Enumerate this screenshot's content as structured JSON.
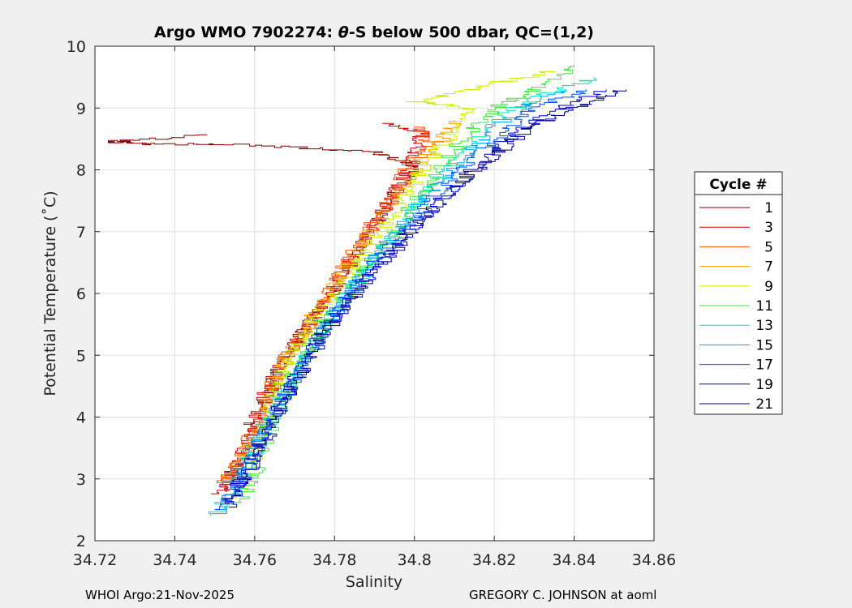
{
  "chart_data": {
    "type": "line",
    "title": "Argo WMO 7902274: θ-S below 500 dbar,  QC=(1,2)",
    "title_prefix": "Argo WMO 7902274: ",
    "title_theta": "θ",
    "title_suffix": "-S below 500 dbar,  QC=(1,2)",
    "xlabel": "Salinity",
    "ylabel": "Potential Temperature (˚C)",
    "xlim": [
      34.72,
      34.86
    ],
    "ylim": [
      2,
      10
    ],
    "xticks": [
      "34.72",
      "34.74",
      "34.76",
      "34.78",
      "34.8",
      "34.82",
      "34.84",
      "34.86"
    ],
    "yticks": [
      "2",
      "3",
      "4",
      "5",
      "6",
      "7",
      "8",
      "9",
      "10"
    ],
    "grid": true,
    "legend": {
      "title": "Cycle #",
      "placement": "outside-right",
      "entries": [
        {
          "label": "1",
          "color": "#800000"
        },
        {
          "label": "3",
          "color": "#d40000"
        },
        {
          "label": "5",
          "color": "#ff4f00"
        },
        {
          "label": "7",
          "color": "#ff9f00"
        },
        {
          "label": "9",
          "color": "#c8f000"
        },
        {
          "label": "11",
          "color": "#3ae93a"
        },
        {
          "label": "13",
          "color": "#00e5b0"
        },
        {
          "label": "15",
          "color": "#00a8ff"
        },
        {
          "label": "17",
          "color": "#0050ff"
        },
        {
          "label": "19",
          "color": "#0000d8"
        },
        {
          "label": "21",
          "color": "#00008f"
        }
      ]
    },
    "series": [
      {
        "name": "1",
        "points": [
          [
            34.752,
            2.8
          ],
          [
            34.756,
            3.3
          ],
          [
            34.76,
            3.9
          ],
          [
            34.764,
            4.5
          ],
          [
            34.768,
            5.0
          ],
          [
            34.772,
            5.4
          ],
          [
            34.777,
            5.8
          ],
          [
            34.782,
            6.3
          ],
          [
            34.787,
            6.8
          ],
          [
            34.792,
            7.3
          ],
          [
            34.797,
            7.8
          ],
          [
            34.8,
            8.1
          ],
          [
            34.79,
            8.3
          ],
          [
            34.76,
            8.4
          ],
          [
            34.735,
            8.42
          ],
          [
            34.722,
            8.46
          ],
          [
            34.748,
            8.56
          ]
        ]
      },
      {
        "name": "3",
        "points": [
          [
            34.751,
            2.75
          ],
          [
            34.755,
            3.2
          ],
          [
            34.759,
            3.8
          ],
          [
            34.762,
            4.4
          ],
          [
            34.767,
            4.9
          ],
          [
            34.771,
            5.3
          ],
          [
            34.776,
            5.7
          ],
          [
            34.781,
            6.2
          ],
          [
            34.786,
            6.7
          ],
          [
            34.791,
            7.2
          ],
          [
            34.795,
            7.7
          ],
          [
            34.8,
            8.2
          ],
          [
            34.802,
            8.6
          ],
          [
            34.792,
            8.75
          ]
        ]
      },
      {
        "name": "5",
        "points": [
          [
            34.752,
            2.9
          ],
          [
            34.757,
            3.4
          ],
          [
            34.761,
            4.0
          ],
          [
            34.765,
            4.6
          ],
          [
            34.769,
            5.1
          ],
          [
            34.774,
            5.6
          ],
          [
            34.779,
            6.1
          ],
          [
            34.784,
            6.6
          ],
          [
            34.789,
            7.1
          ],
          [
            34.794,
            7.6
          ],
          [
            34.799,
            8.1
          ],
          [
            34.804,
            8.4
          ],
          [
            34.8,
            8.7
          ]
        ]
      },
      {
        "name": "7",
        "points": [
          [
            34.753,
            3.0
          ],
          [
            34.758,
            3.5
          ],
          [
            34.762,
            4.1
          ],
          [
            34.766,
            4.7
          ],
          [
            34.77,
            5.2
          ],
          [
            34.775,
            5.7
          ],
          [
            34.78,
            6.2
          ],
          [
            34.786,
            6.7
          ],
          [
            34.791,
            7.2
          ],
          [
            34.797,
            7.7
          ],
          [
            34.802,
            8.2
          ],
          [
            34.807,
            8.5
          ],
          [
            34.81,
            8.8
          ]
        ]
      },
      {
        "name": "9",
        "points": [
          [
            34.755,
            2.7
          ],
          [
            34.759,
            3.2
          ],
          [
            34.763,
            3.9
          ],
          [
            34.766,
            4.6
          ],
          [
            34.769,
            5.0
          ],
          [
            34.774,
            5.5
          ],
          [
            34.78,
            6.0
          ],
          [
            34.786,
            6.5
          ],
          [
            34.792,
            7.0
          ],
          [
            34.797,
            7.5
          ],
          [
            34.802,
            8.0
          ],
          [
            34.808,
            8.5
          ],
          [
            34.815,
            9.0
          ],
          [
            34.8,
            9.1
          ],
          [
            34.82,
            9.4
          ],
          [
            34.835,
            9.6
          ]
        ]
      },
      {
        "name": "11",
        "points": [
          [
            34.756,
            2.6
          ],
          [
            34.76,
            3.1
          ],
          [
            34.764,
            3.8
          ],
          [
            34.768,
            4.5
          ],
          [
            34.772,
            5.0
          ],
          [
            34.777,
            5.5
          ],
          [
            34.783,
            6.0
          ],
          [
            34.789,
            6.5
          ],
          [
            34.795,
            7.0
          ],
          [
            34.8,
            7.5
          ],
          [
            34.806,
            8.0
          ],
          [
            34.812,
            8.5
          ],
          [
            34.82,
            9.0
          ],
          [
            34.83,
            9.3
          ],
          [
            34.84,
            9.7
          ]
        ]
      },
      {
        "name": "13",
        "points": [
          [
            34.75,
            2.4
          ],
          [
            34.755,
            2.9
          ],
          [
            34.76,
            3.5
          ],
          [
            34.765,
            4.1
          ],
          [
            34.77,
            4.7
          ],
          [
            34.776,
            5.3
          ],
          [
            34.782,
            5.9
          ],
          [
            34.788,
            6.4
          ],
          [
            34.794,
            6.9
          ],
          [
            34.8,
            7.4
          ],
          [
            34.806,
            7.9
          ],
          [
            34.813,
            8.4
          ],
          [
            34.822,
            8.9
          ],
          [
            34.832,
            9.2
          ],
          [
            34.845,
            9.5
          ]
        ]
      },
      {
        "name": "15",
        "points": [
          [
            34.751,
            2.45
          ],
          [
            34.756,
            3.0
          ],
          [
            34.761,
            3.6
          ],
          [
            34.766,
            4.2
          ],
          [
            34.771,
            4.8
          ],
          [
            34.777,
            5.4
          ],
          [
            34.783,
            6.0
          ],
          [
            34.789,
            6.5
          ],
          [
            34.795,
            7.0
          ],
          [
            34.802,
            7.5
          ],
          [
            34.809,
            8.0
          ],
          [
            34.817,
            8.5
          ],
          [
            34.826,
            9.0
          ],
          [
            34.838,
            9.3
          ]
        ]
      },
      {
        "name": "17",
        "points": [
          [
            34.752,
            2.5
          ],
          [
            34.757,
            3.1
          ],
          [
            34.762,
            3.7
          ],
          [
            34.767,
            4.3
          ],
          [
            34.772,
            4.9
          ],
          [
            34.778,
            5.5
          ],
          [
            34.784,
            6.0
          ],
          [
            34.79,
            6.5
          ],
          [
            34.797,
            7.0
          ],
          [
            34.804,
            7.5
          ],
          [
            34.812,
            8.0
          ],
          [
            34.82,
            8.5
          ],
          [
            34.83,
            9.0
          ],
          [
            34.843,
            9.3
          ]
        ]
      },
      {
        "name": "19",
        "points": [
          [
            34.753,
            2.55
          ],
          [
            34.758,
            3.15
          ],
          [
            34.763,
            3.75
          ],
          [
            34.768,
            4.35
          ],
          [
            34.773,
            4.95
          ],
          [
            34.779,
            5.55
          ],
          [
            34.786,
            6.1
          ],
          [
            34.793,
            6.6
          ],
          [
            34.8,
            7.1
          ],
          [
            34.808,
            7.6
          ],
          [
            34.816,
            8.1
          ],
          [
            34.825,
            8.6
          ],
          [
            34.836,
            9.0
          ],
          [
            34.848,
            9.3
          ]
        ]
      },
      {
        "name": "21",
        "points": [
          [
            34.754,
            2.6
          ],
          [
            34.759,
            3.2
          ],
          [
            34.764,
            3.8
          ],
          [
            34.769,
            4.4
          ],
          [
            34.774,
            5.0
          ],
          [
            34.78,
            5.6
          ],
          [
            34.787,
            6.15
          ],
          [
            34.794,
            6.65
          ],
          [
            34.801,
            7.15
          ],
          [
            34.809,
            7.65
          ],
          [
            34.818,
            8.15
          ],
          [
            34.828,
            8.65
          ],
          [
            34.84,
            9.0
          ],
          [
            34.853,
            9.3
          ]
        ]
      }
    ]
  },
  "footer": {
    "left": "WHOI Argo:21-Nov-2025",
    "right": "GREGORY C. JOHNSON at aoml"
  }
}
